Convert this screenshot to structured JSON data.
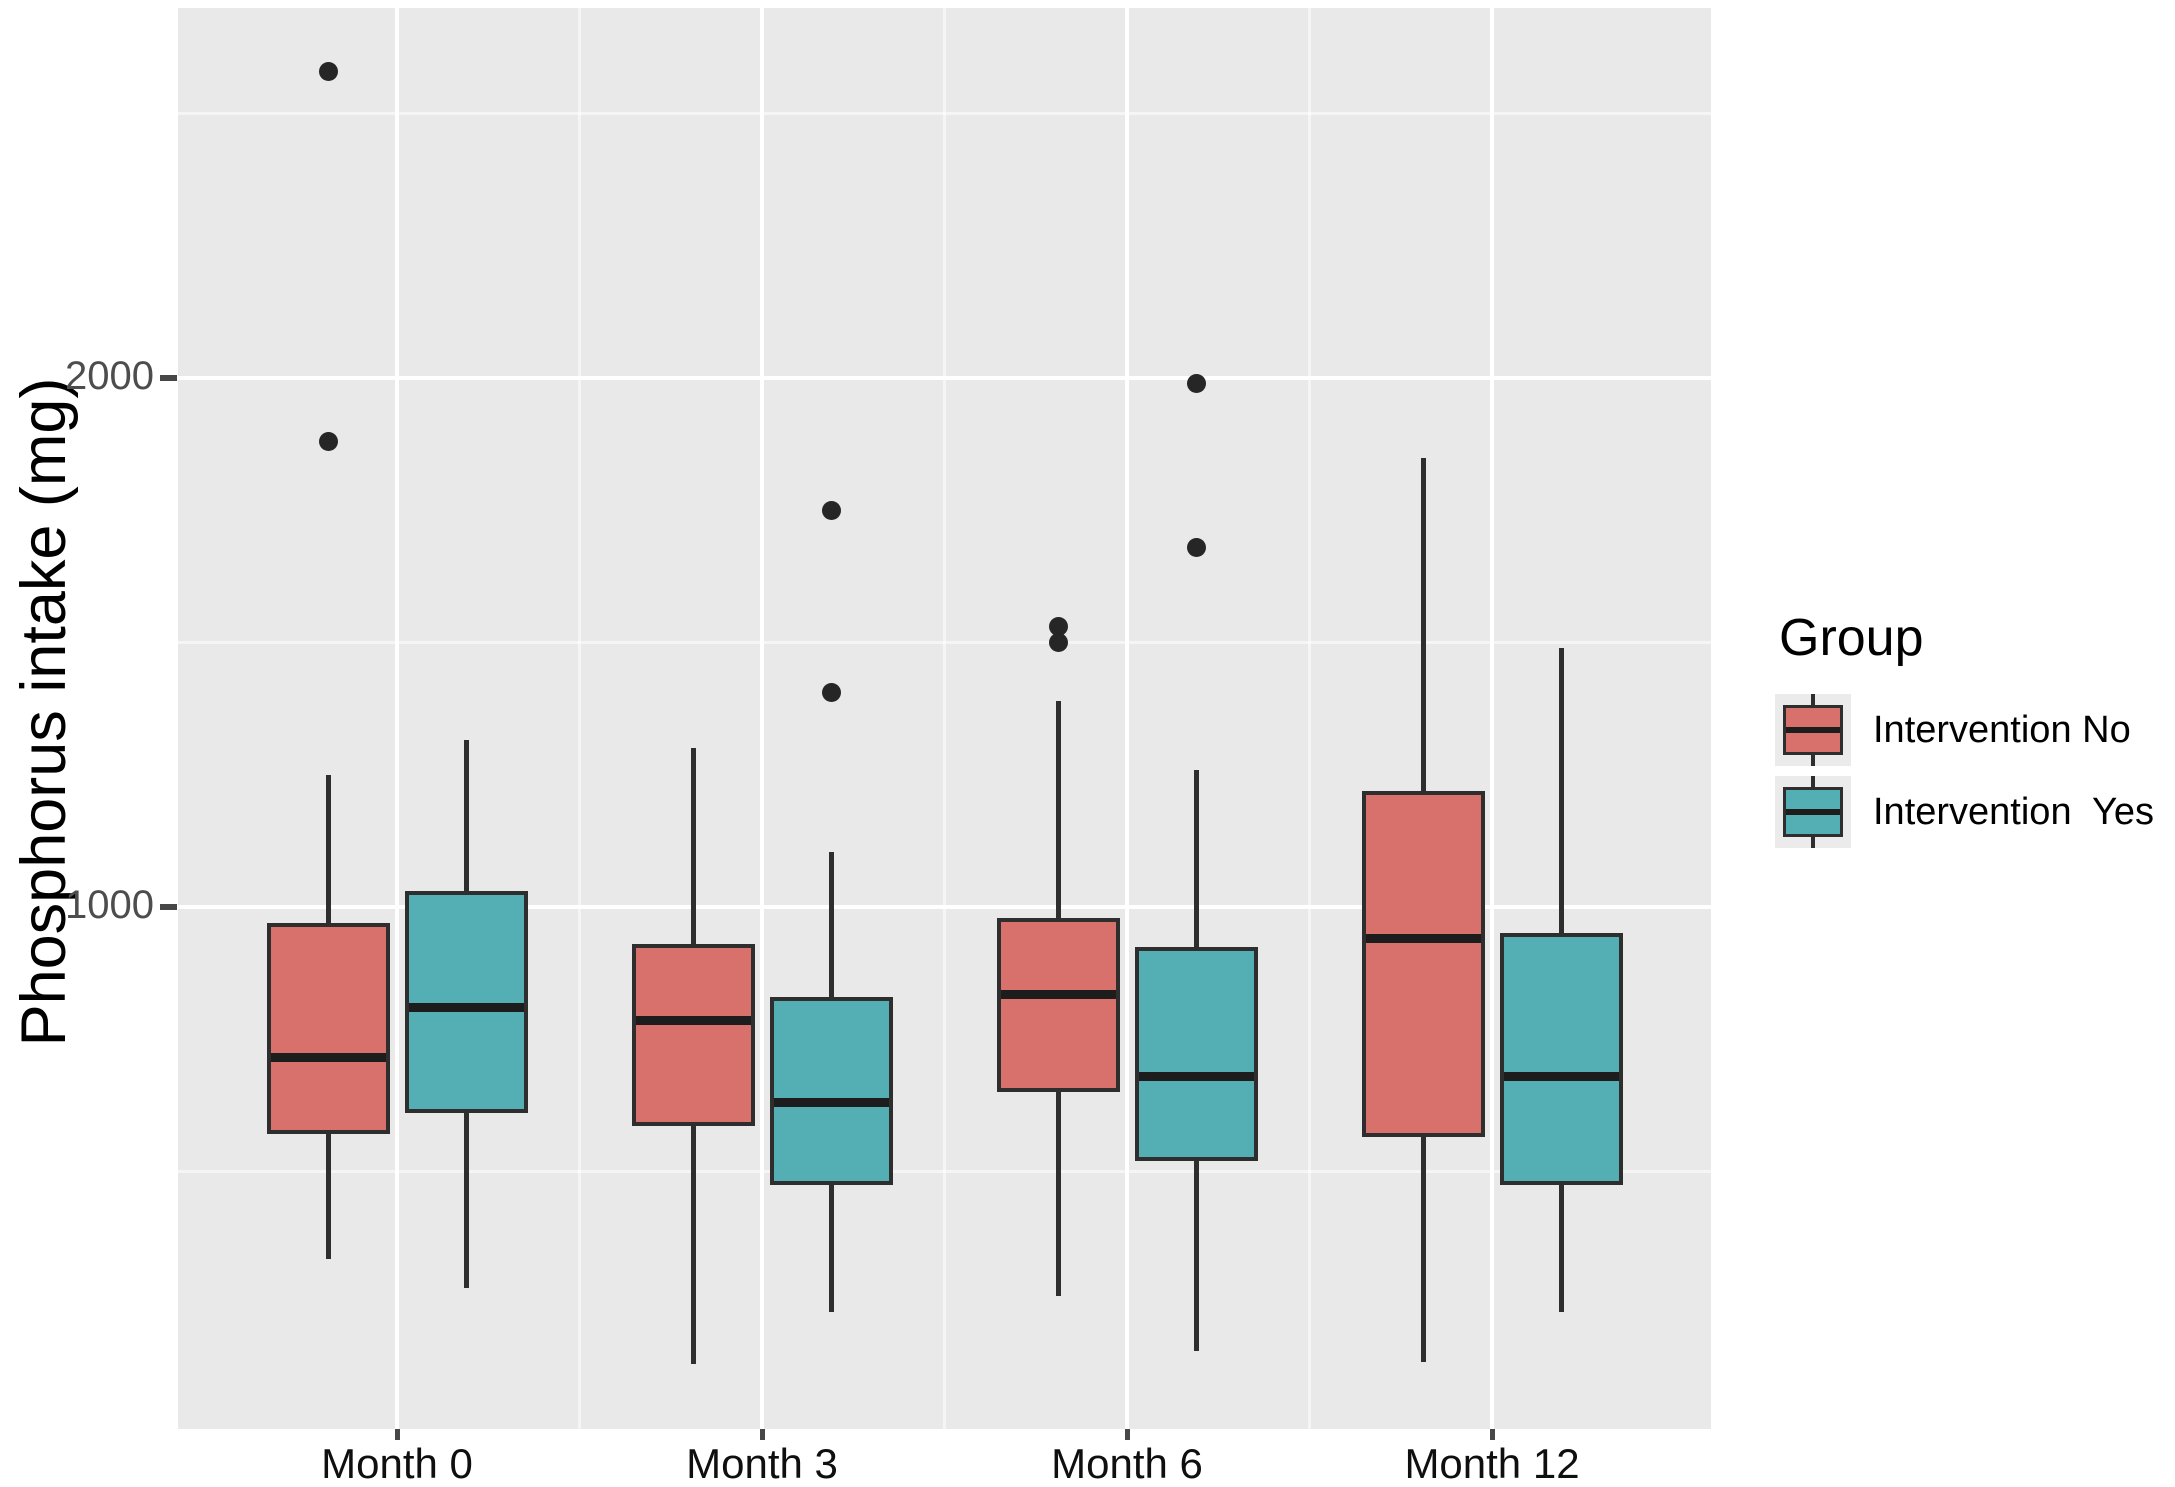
{
  "chart_data": {
    "type": "boxplot",
    "title": "",
    "xlabel": "",
    "ylabel": "Phosphorus intake (mg)",
    "categories": [
      "Month 0",
      "Month 3",
      "Month 6",
      "Month 12"
    ],
    "y_axis": {
      "ticks": [
        1000,
        2000
      ],
      "tick_labels": [
        "1000",
        "2000"
      ],
      "minor_ticks": [
        500,
        1500,
        2500
      ],
      "range": [
        13,
        2700
      ],
      "grid": true
    },
    "legend": {
      "title": "Group",
      "position": "right",
      "entries": [
        {
          "label": "Intervention No",
          "color": "#D8716B"
        },
        {
          "label": "Intervention  Yes",
          "color": "#54AFB5"
        }
      ]
    },
    "colors": {
      "intervention_no": "#D8716B",
      "intervention_yes": "#54AFB5",
      "panel_background": "#E9E9E9",
      "gridline": "#FFFFFF",
      "box_stroke": "#2E2E2E",
      "outlier": "#262626"
    },
    "series": [
      {
        "name": "Intervention No",
        "color": "#D8716B",
        "boxes": [
          {
            "category": "Month 0",
            "low": 335,
            "q1": 570,
            "median": 715,
            "q3": 970,
            "high": 1250,
            "outliers": [
              1880,
              2580
            ]
          },
          {
            "category": "Month 3",
            "low": 135,
            "q1": 585,
            "median": 785,
            "q3": 930,
            "high": 1300,
            "outliers": []
          },
          {
            "category": "Month 6",
            "low": 265,
            "q1": 650,
            "median": 835,
            "q3": 980,
            "high": 1390,
            "outliers": [
              1500,
              1530
            ]
          },
          {
            "category": "Month 12",
            "low": 140,
            "q1": 565,
            "median": 940,
            "q3": 1220,
            "high": 1850,
            "outliers": []
          }
        ]
      },
      {
        "name": "Intervention Yes",
        "color": "#54AFB5",
        "boxes": [
          {
            "category": "Month 0",
            "low": 280,
            "q1": 610,
            "median": 810,
            "q3": 1030,
            "high": 1315,
            "outliers": []
          },
          {
            "category": "Month 3",
            "low": 235,
            "q1": 475,
            "median": 630,
            "q3": 830,
            "high": 1105,
            "outliers": [
              1405,
              1750
            ]
          },
          {
            "category": "Month 6",
            "low": 160,
            "q1": 520,
            "median": 680,
            "q3": 925,
            "high": 1260,
            "outliers": [
              1680,
              1990
            ]
          },
          {
            "category": "Month 12",
            "low": 235,
            "q1": 475,
            "median": 680,
            "q3": 950,
            "high": 1490,
            "outliers": []
          }
        ]
      }
    ]
  }
}
